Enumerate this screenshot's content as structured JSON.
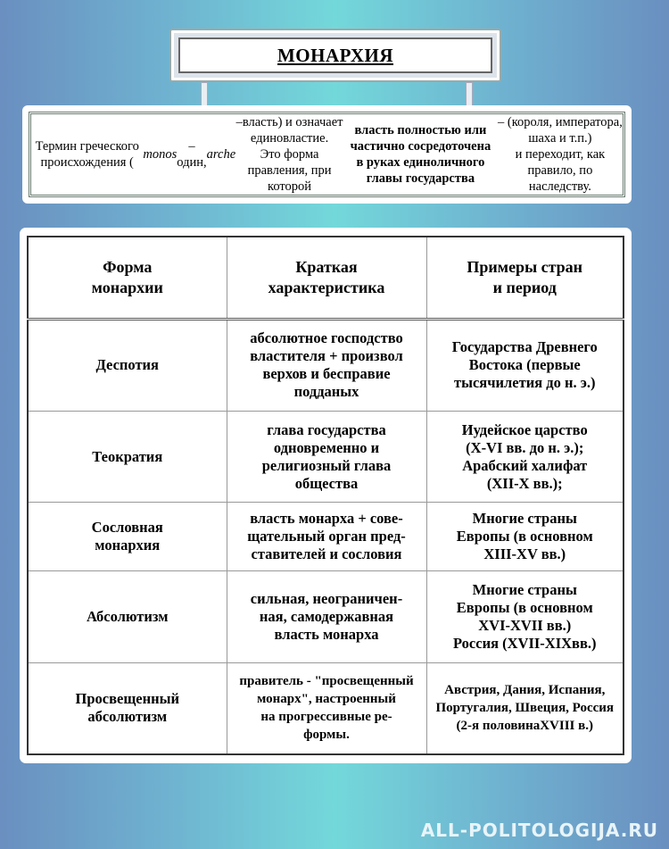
{
  "title": "МОНАРХИЯ",
  "definition": "Термин греческого происхождения (monos – один, arche –власть) и означает единовластие.\nЭто форма правления, при которой власть полностью или частично сосредоточена\nв руках единоличного главы государства – (короля, императора, шаха и т.п.)\nи переходит, как правило, по наследству.",
  "table": {
    "headers": [
      "Форма\nмонархии",
      "Краткая\nхарактеристика",
      "Примеры стран\nи период"
    ],
    "rows": [
      [
        "Деспотия",
        "абсолютное господство\nвластителя + произвол\nверхов и бесправие\nподданых",
        "Государства Древнего\nВостока (первые\nтысячилетия до н. э.)"
      ],
      [
        "Теократия",
        "глава государства\nодновременно и\nрелигиозный глава\nобщества",
        "Иудейское царство\n(X-VI вв. до н. э.);\nАрабский халифат\n(XII-X вв.);"
      ],
      [
        "Сословная\nмонархия",
        "власть монарха + сове-\nщательный орган пред-\nставителей и сословия",
        "Многие страны\nЕвропы (в основном\nXIII-XV вв.)"
      ],
      [
        "Абсолютизм",
        "сильная, неограничен-\nная, самодержавная\nвласть монарха",
        "Многие страны\nЕвропы (в основном\nXVI-XVII вв.)\nРоссия (XVII-XIXвв.)"
      ],
      [
        "Просвещенный\nабсолютизм",
        "правитель - \"просвещенный\nмонарх\", настроенный\nна прогрессивные ре-\nформы.",
        "Австрия, Дания, Испания,\nПортугалия, Швеция, Россия\n(2-я половинаXVIII в.)"
      ]
    ]
  },
  "watermark": "ALL-POLITOLOGIJA.RU"
}
